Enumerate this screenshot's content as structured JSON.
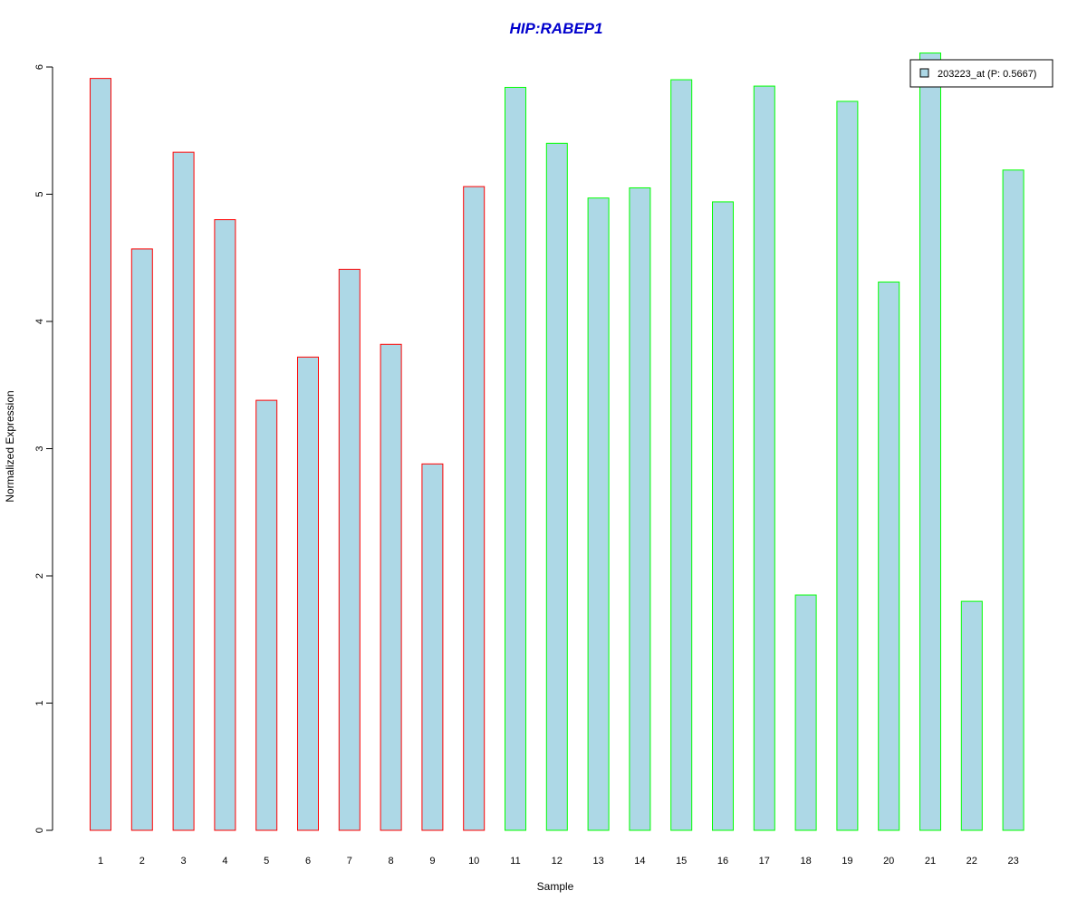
{
  "colors": {
    "bar_fill": "#add8e6",
    "group1_border": "#ff0000",
    "group2_border": "#00ff00",
    "title": "#0000cd",
    "axis": "#000000"
  },
  "chart_data": {
    "type": "bar",
    "title": "HIP:RABEP1",
    "xlabel": "Sample",
    "ylabel": "Normalized Expression",
    "ylim": [
      0,
      6
    ],
    "yticks": [
      0,
      1,
      2,
      3,
      4,
      5,
      6
    ],
    "grid": false,
    "legend_position": "top-right",
    "categories": [
      "1",
      "2",
      "3",
      "4",
      "5",
      "6",
      "7",
      "8",
      "9",
      "10",
      "11",
      "12",
      "13",
      "14",
      "15",
      "16",
      "17",
      "18",
      "19",
      "20",
      "21",
      "22",
      "23"
    ],
    "series": [
      {
        "name": "203223_at (P: 0.5667)",
        "values": [
          5.91,
          4.57,
          5.33,
          4.8,
          3.38,
          3.72,
          4.41,
          3.82,
          2.88,
          5.06,
          5.84,
          5.4,
          4.97,
          5.05,
          5.9,
          4.94,
          5.85,
          1.85,
          5.73,
          4.31,
          6.11,
          1.8,
          5.19
        ],
        "groups": [
          1,
          1,
          1,
          1,
          1,
          1,
          1,
          1,
          1,
          1,
          2,
          2,
          2,
          2,
          2,
          2,
          2,
          2,
          2,
          2,
          2,
          2,
          2
        ]
      }
    ]
  }
}
